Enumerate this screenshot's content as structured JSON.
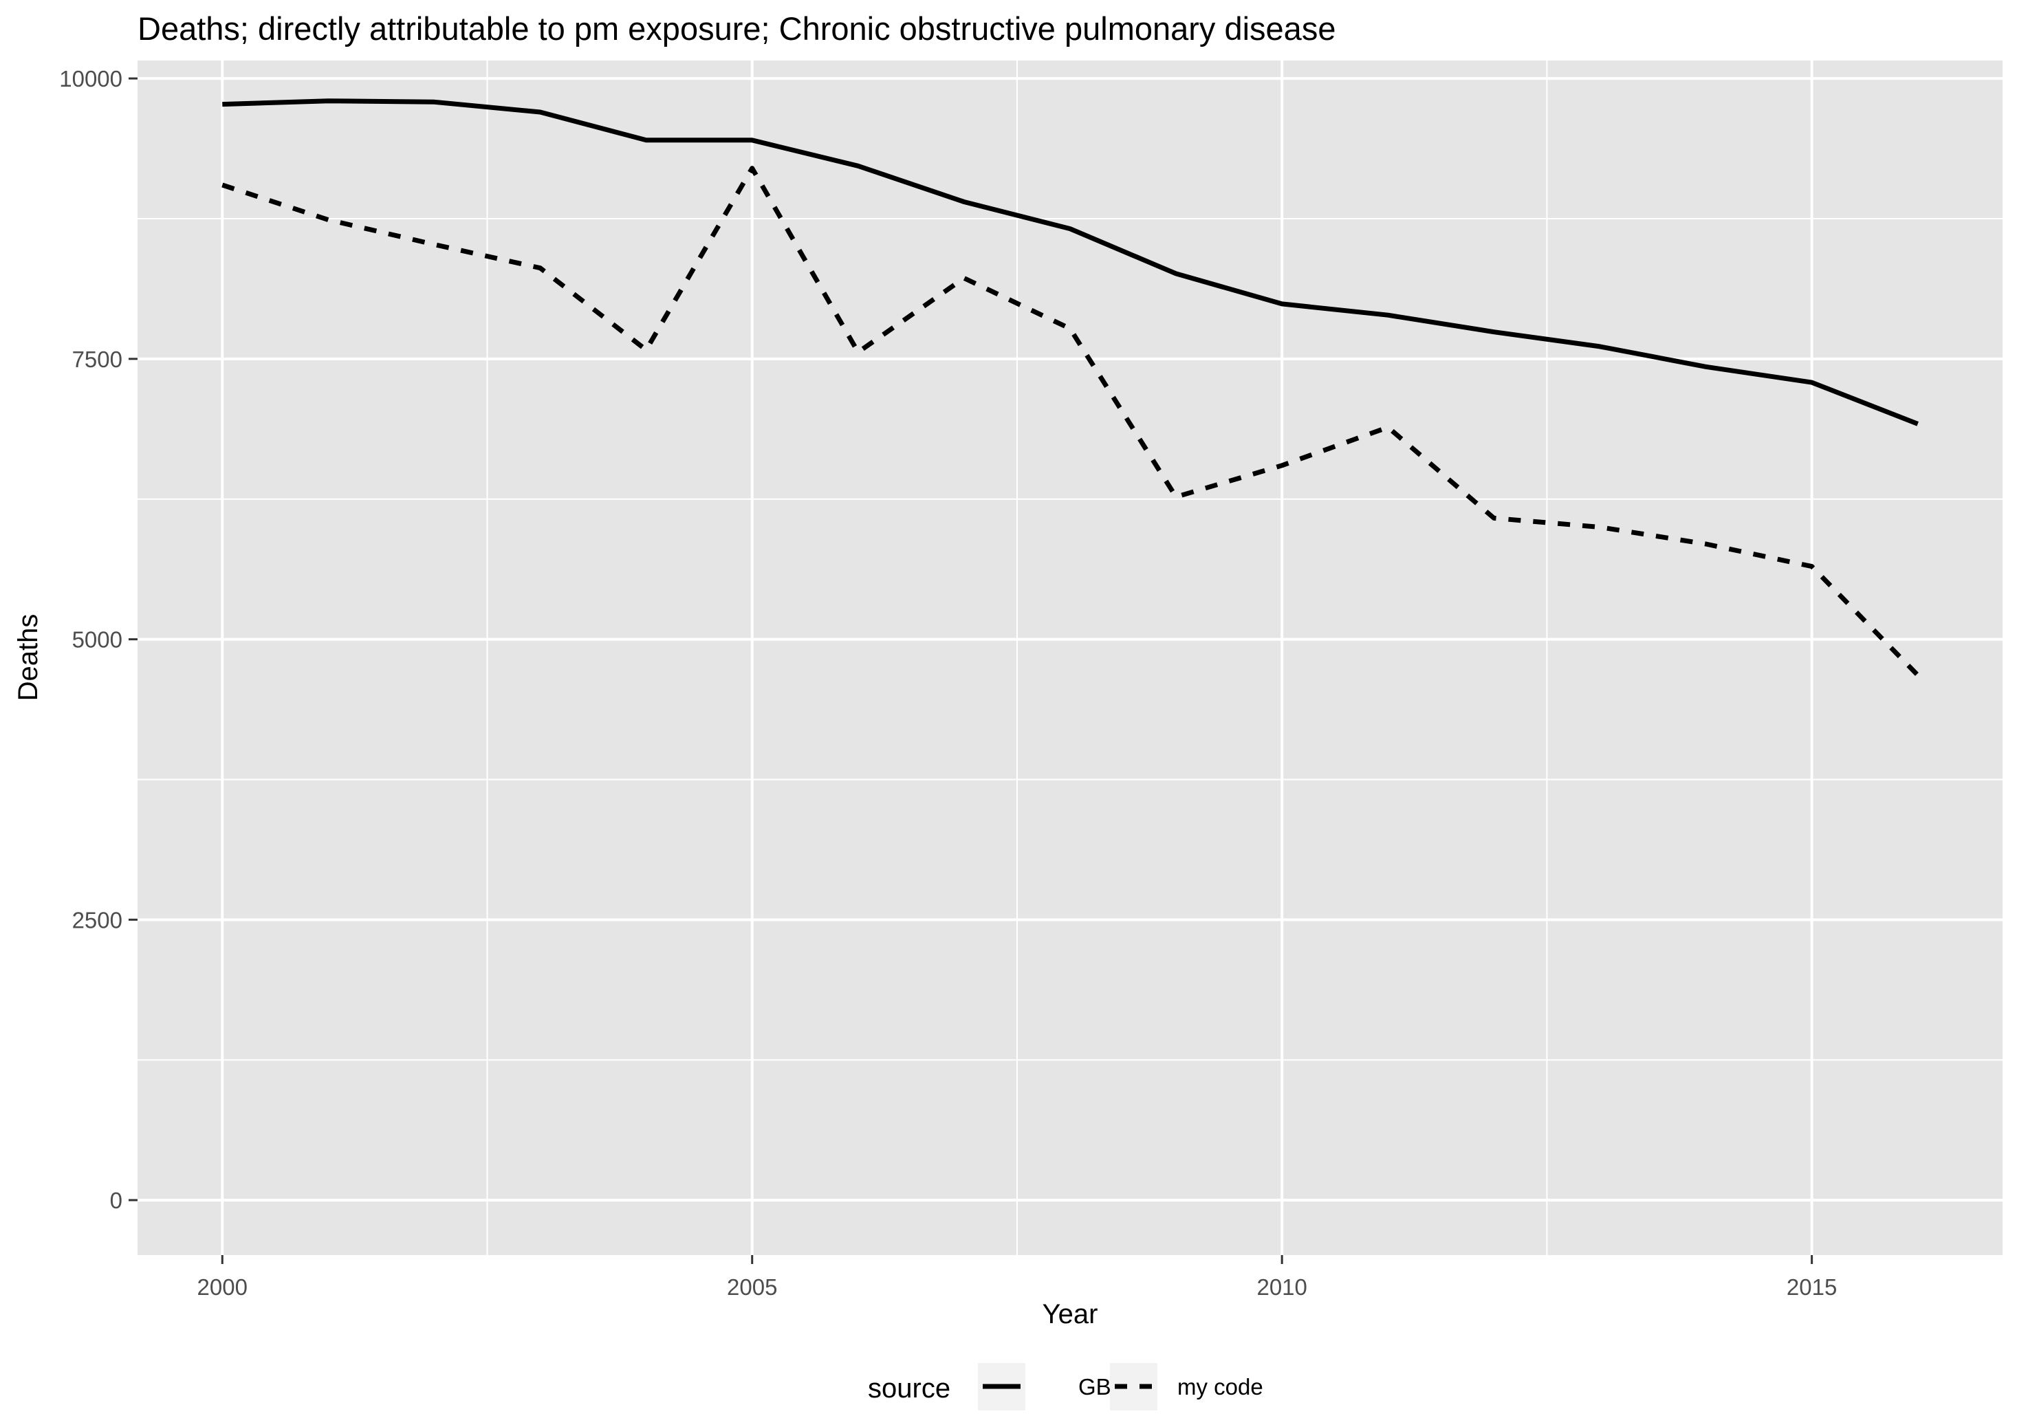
{
  "chart_data": {
    "type": "line",
    "title": "Deaths; directly attributable to pm exposure; Chronic obstructive pulmonary disease",
    "xlabel": "Year",
    "ylabel": "Deaths",
    "xlim": [
      1999.2,
      2016.8
    ],
    "ylim": [
      -490,
      10160
    ],
    "x_ticks": [
      2000,
      2005,
      2010,
      2015
    ],
    "y_ticks": [
      0,
      2500,
      5000,
      7500,
      10000
    ],
    "x": [
      2000,
      2001,
      2002,
      2003,
      2004,
      2005,
      2006,
      2007,
      2008,
      2009,
      2010,
      2011,
      2012,
      2013,
      2014,
      2015,
      2016
    ],
    "series": [
      {
        "name": "GBD",
        "linetype": "solid",
        "values": [
          9770,
          9800,
          9790,
          9700,
          9450,
          9450,
          9220,
          8900,
          8660,
          8260,
          7990,
          7890,
          7740,
          7610,
          7430,
          7290,
          6920
        ]
      },
      {
        "name": "my code",
        "linetype": "dashed",
        "values": [
          9050,
          8740,
          8520,
          8310,
          7580,
          9200,
          7560,
          8220,
          7770,
          6270,
          6550,
          6890,
          6080,
          6000,
          5850,
          5650,
          4680
        ]
      }
    ],
    "legend": {
      "title": "source",
      "position": "bottom"
    },
    "grid": true,
    "panel_background": "#e5e5e5",
    "grid_color": "#ffffff",
    "line_color": "#000000"
  }
}
